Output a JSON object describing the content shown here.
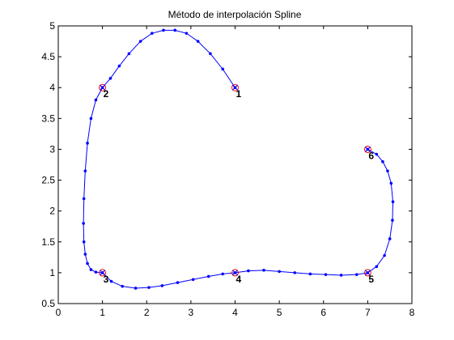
{
  "chart_data": {
    "type": "line",
    "title": "Método de interpolación Spline",
    "xlabel": "",
    "ylabel": "",
    "xlim": [
      0,
      8
    ],
    "ylim": [
      0.5,
      5
    ],
    "xticks": [
      0,
      1,
      2,
      3,
      4,
      5,
      6,
      7,
      8
    ],
    "yticks": [
      0.5,
      1,
      1.5,
      2,
      2.5,
      3,
      3.5,
      4,
      4.5,
      5
    ],
    "xtick_labels": [
      "0",
      "1",
      "2",
      "3",
      "4",
      "5",
      "6",
      "7",
      "8"
    ],
    "ytick_labels": [
      "0.5",
      "1",
      "1.5",
      "2",
      "2.5",
      "3",
      "3.5",
      "4",
      "4.5",
      "5"
    ],
    "grid": false,
    "control_points": [
      {
        "label": "1",
        "x": 4,
        "y": 4
      },
      {
        "label": "2",
        "x": 1,
        "y": 4
      },
      {
        "label": "3",
        "x": 1,
        "y": 1
      },
      {
        "label": "4",
        "x": 4,
        "y": 1
      },
      {
        "label": "5",
        "x": 7,
        "y": 1
      },
      {
        "label": "6",
        "x": 7,
        "y": 3
      }
    ],
    "spline_curve": {
      "x": [
        4.0,
        3.72,
        3.44,
        3.16,
        2.9,
        2.64,
        2.38,
        2.12,
        1.86,
        1.6,
        1.38,
        1.18,
        1.0,
        0.85,
        0.74,
        0.66,
        0.61,
        0.58,
        0.57,
        0.58,
        0.61,
        0.66,
        0.74,
        0.85,
        1.0,
        1.2,
        1.45,
        1.75,
        2.05,
        2.35,
        2.7,
        3.05,
        3.4,
        3.72,
        4.0,
        4.3,
        4.65,
        5.0,
        5.35,
        5.7,
        6.05,
        6.4,
        6.75,
        7.0,
        7.2,
        7.38,
        7.5,
        7.56,
        7.57,
        7.53,
        7.45,
        7.34,
        7.2,
        7.0
      ],
      "y": [
        4.0,
        4.3,
        4.55,
        4.75,
        4.88,
        4.93,
        4.93,
        4.88,
        4.75,
        4.55,
        4.35,
        4.15,
        4.0,
        3.8,
        3.5,
        3.1,
        2.65,
        2.2,
        1.8,
        1.5,
        1.3,
        1.15,
        1.05,
        1.01,
        1.0,
        0.86,
        0.78,
        0.75,
        0.76,
        0.79,
        0.84,
        0.89,
        0.94,
        0.98,
        1.0,
        1.03,
        1.04,
        1.02,
        1.0,
        0.98,
        0.97,
        0.96,
        0.97,
        1.0,
        1.1,
        1.28,
        1.55,
        1.85,
        2.15,
        2.45,
        2.65,
        2.8,
        2.92,
        3.0
      ]
    }
  }
}
